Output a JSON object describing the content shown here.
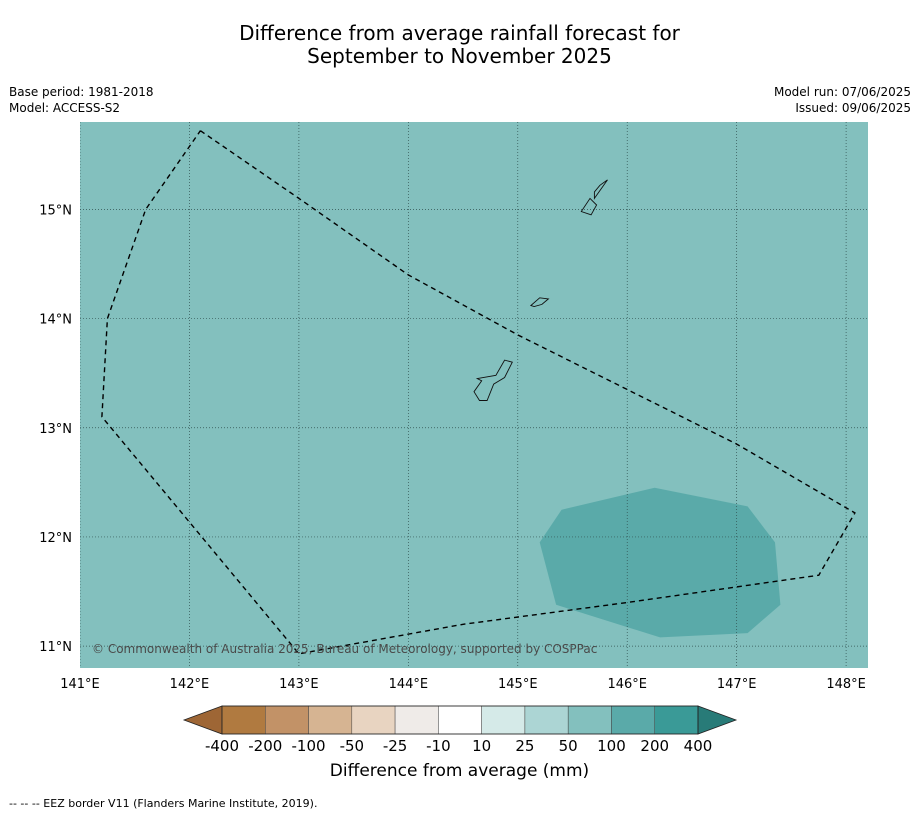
{
  "title_line1": "Difference from average rainfall forecast for",
  "title_line2": "September to November 2025",
  "meta_left": {
    "base_period": "Base period: 1981-2018",
    "model": "Model: ACCESS-S2"
  },
  "meta_right": {
    "model_run": "Model run: 07/06/2025",
    "issued": "Issued: 09/06/2025"
  },
  "map": {
    "lon_range": [
      141.0,
      148.2
    ],
    "lat_range": [
      10.8,
      15.8
    ],
    "lon_ticks": [
      {
        "value": 141,
        "label": "141°E"
      },
      {
        "value": 142,
        "label": "142°E"
      },
      {
        "value": 143,
        "label": "143°E"
      },
      {
        "value": 144,
        "label": "144°E"
      },
      {
        "value": 145,
        "label": "145°E"
      },
      {
        "value": 146,
        "label": "146°E"
      },
      {
        "value": 147,
        "label": "147°E"
      },
      {
        "value": 148,
        "label": "148°E"
      }
    ],
    "lat_ticks": [
      {
        "value": 15,
        "label": "15°N"
      },
      {
        "value": 14,
        "label": "14°N"
      },
      {
        "value": 13,
        "label": "13°N"
      },
      {
        "value": 12,
        "label": "12°N"
      },
      {
        "value": 11,
        "label": "11°N"
      }
    ],
    "background_color": "#83c0be",
    "anomaly_color": "#5aaaa9",
    "copyright": "© Commonwealth of Australia 2025, Bureau of Meteorology, supported by COSPPac",
    "anomaly_region": [
      [
        145.2,
        11.95
      ],
      [
        145.4,
        12.25
      ],
      [
        146.25,
        12.45
      ],
      [
        147.1,
        12.28
      ],
      [
        147.35,
        11.95
      ],
      [
        147.4,
        11.38
      ],
      [
        147.1,
        11.12
      ],
      [
        146.3,
        11.08
      ],
      [
        145.35,
        11.38
      ]
    ],
    "eez_border": [
      [
        142.1,
        15.72
      ],
      [
        143.0,
        15.1
      ],
      [
        144.0,
        14.4
      ],
      [
        145.0,
        13.85
      ],
      [
        146.0,
        13.35
      ],
      [
        147.0,
        12.85
      ],
      [
        148.08,
        12.22
      ],
      [
        147.75,
        11.65
      ],
      [
        146.0,
        11.4
      ],
      [
        144.5,
        11.2
      ],
      [
        143.0,
        10.93
      ],
      [
        141.2,
        13.1
      ],
      [
        141.25,
        14.0
      ],
      [
        141.6,
        15.0
      ],
      [
        142.1,
        15.72
      ]
    ],
    "islands": [
      [
        [
          144.63,
          13.45
        ],
        [
          144.8,
          13.48
        ],
        [
          144.88,
          13.62
        ],
        [
          144.95,
          13.6
        ],
        [
          144.88,
          13.46
        ],
        [
          144.78,
          13.4
        ],
        [
          144.72,
          13.25
        ],
        [
          144.65,
          13.25
        ],
        [
          144.6,
          13.33
        ],
        [
          144.67,
          13.43
        ]
      ],
      [
        [
          145.12,
          14.12
        ],
        [
          145.2,
          14.19
        ],
        [
          145.28,
          14.18
        ],
        [
          145.22,
          14.13
        ],
        [
          145.15,
          14.11
        ]
      ],
      [
        [
          145.58,
          14.98
        ],
        [
          145.66,
          15.1
        ],
        [
          145.72,
          15.04
        ],
        [
          145.67,
          14.95
        ]
      ],
      [
        [
          145.7,
          15.1
        ],
        [
          145.82,
          15.27
        ],
        [
          145.75,
          15.22
        ],
        [
          145.7,
          15.16
        ]
      ]
    ]
  },
  "colorbar": {
    "title": "Difference from average (mm)",
    "labels": [
      "-400",
      "-200",
      "-100",
      "-50",
      "-25",
      "-10",
      "10",
      "25",
      "50",
      "100",
      "200",
      "400"
    ],
    "colors": [
      "#9e6635",
      "#b07a40",
      "#c29267",
      "#d6b492",
      "#e8d4c1",
      "#efebe8",
      "#ffffff",
      "#d5eae8",
      "#acd5d4",
      "#83c0be",
      "#5aaaa9",
      "#3a9a97",
      "#287b78"
    ]
  },
  "footnote": "--  --  -- EEZ border V11 (Flanders Marine Institute, 2019)."
}
